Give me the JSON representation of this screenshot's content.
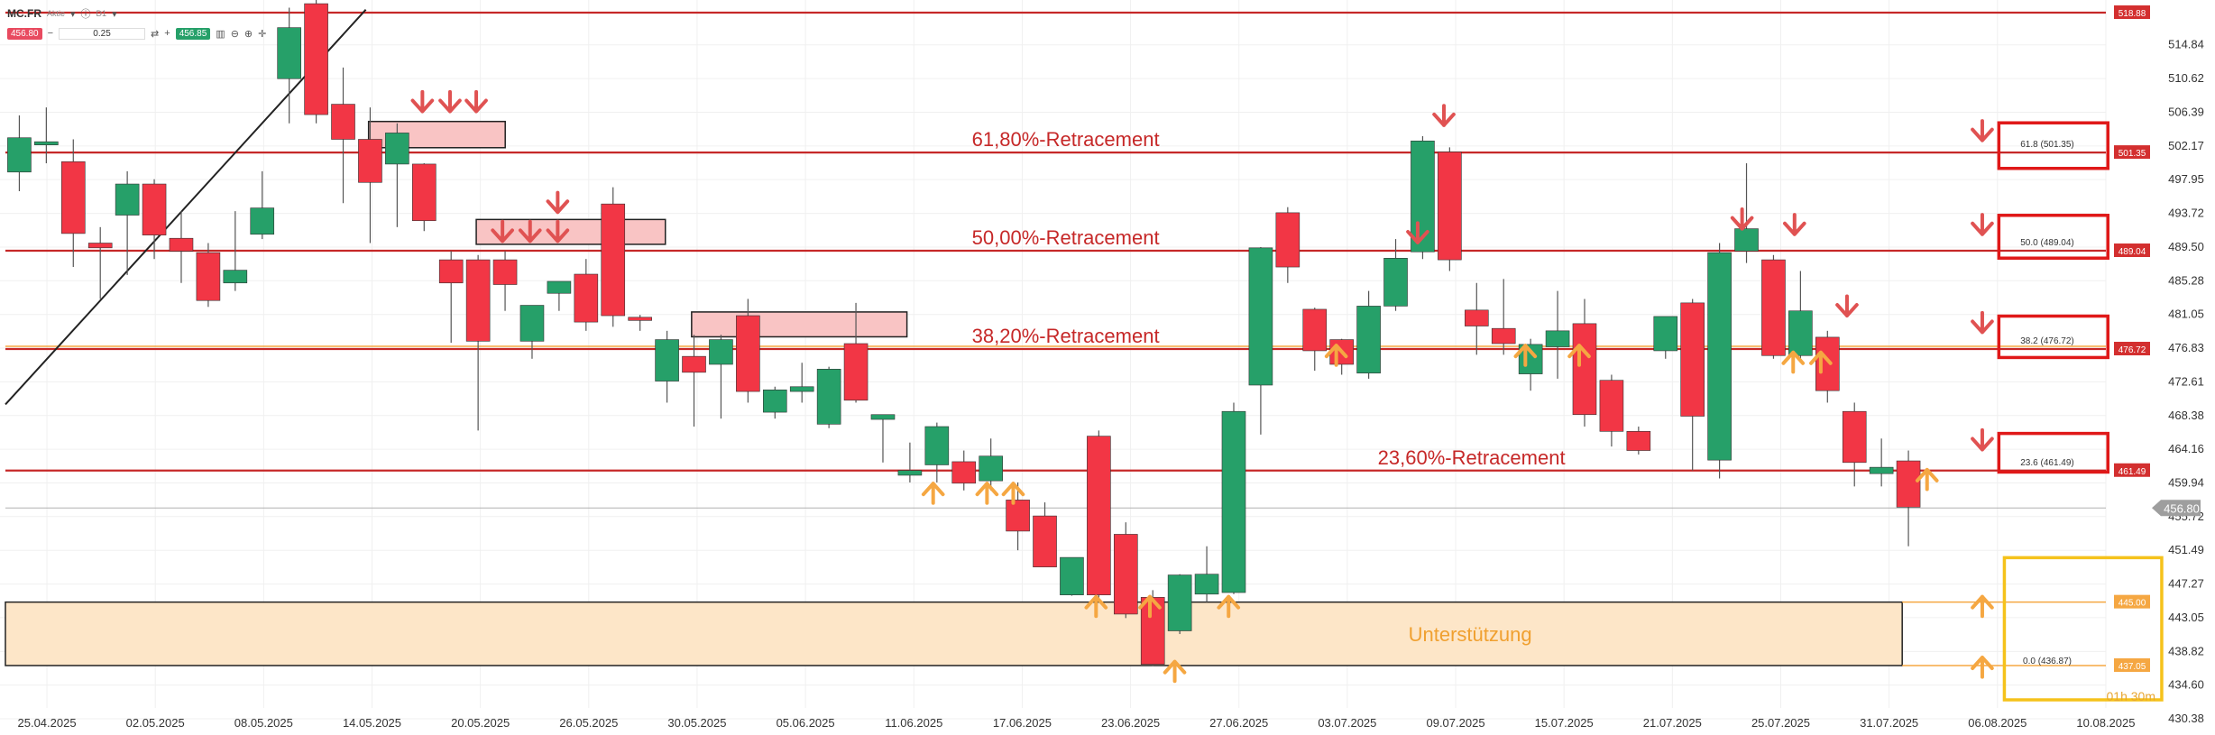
{
  "toolbar": {
    "symbol": "MC.FR",
    "instrument_type": "Aktie",
    "timeframe": "D1",
    "sell_price": "456.80",
    "quantity": "0.25",
    "buy_price": "456.85",
    "icons": [
      "minus-icon",
      "swap-icon",
      "plus-icon",
      "bar-chart-icon",
      "zoom-out-icon",
      "zoom-in-icon",
      "crosshair-icon"
    ]
  },
  "timer": "01h 30m",
  "colors": {
    "bull": "#26a069",
    "bear": "#f23645",
    "fib": "#c62828",
    "support": "#f5a742",
    "support_fill": "#fde6c8",
    "zone_fill": "#f9c4c4"
  },
  "chart_data": {
    "type": "candlestick",
    "ylim": [
      430.38,
      518.88
    ],
    "y_ticks": [
      "514.84",
      "510.62",
      "506.39",
      "502.17",
      "497.95",
      "493.72",
      "489.50",
      "485.28",
      "481.05",
      "476.83",
      "472.61",
      "468.38",
      "464.16",
      "459.94",
      "455.72",
      "451.49",
      "447.27",
      "443.05",
      "438.82",
      "434.60",
      "430.38"
    ],
    "x_ticks": [
      "25.04.2025",
      "02.05.2025",
      "08.05.2025",
      "14.05.2025",
      "20.05.2025",
      "26.05.2025",
      "30.05.2025",
      "05.06.2025",
      "11.06.2025",
      "17.06.2025",
      "23.06.2025",
      "27.06.2025",
      "03.07.2025",
      "09.07.2025",
      "15.07.2025",
      "21.07.2025",
      "25.07.2025",
      "31.07.2025",
      "06.08.2025",
      "10.08.2025"
    ],
    "candles": [
      {
        "o": 498.9,
        "h": 506.0,
        "l": 496.5,
        "c": 503.2
      },
      {
        "o": 502.3,
        "h": 507.0,
        "l": 500.0,
        "c": 502.7
      },
      {
        "o": 500.2,
        "h": 503.0,
        "l": 487.0,
        "c": 491.2
      },
      {
        "o": 490.0,
        "h": 492.0,
        "l": 483.0,
        "c": 489.4
      },
      {
        "o": 493.5,
        "h": 499.0,
        "l": 486.0,
        "c": 497.4
      },
      {
        "o": 497.4,
        "h": 498.0,
        "l": 488.0,
        "c": 491.0
      },
      {
        "o": 490.6,
        "h": 494.0,
        "l": 485.0,
        "c": 489.0
      },
      {
        "o": 488.8,
        "h": 490.0,
        "l": 482.0,
        "c": 482.8
      },
      {
        "o": 485.0,
        "h": 494.0,
        "l": 484.0,
        "c": 486.6
      },
      {
        "o": 491.1,
        "h": 499.0,
        "l": 490.5,
        "c": 494.4
      },
      {
        "o": 510.6,
        "h": 519.5,
        "l": 505.0,
        "c": 517.0
      },
      {
        "o": 520.0,
        "h": 521.0,
        "l": 505.0,
        "c": 506.1
      },
      {
        "o": 507.4,
        "h": 512.0,
        "l": 495.0,
        "c": 503.0
      },
      {
        "o": 503.0,
        "h": 507.0,
        "l": 490.0,
        "c": 497.6
      },
      {
        "o": 499.9,
        "h": 505.0,
        "l": 492.0,
        "c": 503.8
      },
      {
        "o": 499.9,
        "h": 500.0,
        "l": 491.5,
        "c": 492.8
      },
      {
        "o": 487.9,
        "h": 489.0,
        "l": 477.5,
        "c": 485.0
      },
      {
        "o": 487.9,
        "h": 488.5,
        "l": 466.5,
        "c": 477.7
      },
      {
        "o": 487.9,
        "h": 489.0,
        "l": 481.5,
        "c": 484.8
      },
      {
        "o": 477.7,
        "h": 482.0,
        "l": 475.5,
        "c": 482.2
      },
      {
        "o": 483.7,
        "h": 484.5,
        "l": 481.5,
        "c": 485.2
      },
      {
        "o": 486.1,
        "h": 488.0,
        "l": 479.0,
        "c": 480.1
      },
      {
        "o": 494.9,
        "h": 497.0,
        "l": 479.5,
        "c": 480.9
      },
      {
        "o": 480.7,
        "h": 481.0,
        "l": 479.0,
        "c": 480.3
      },
      {
        "o": 472.7,
        "h": 479.0,
        "l": 470.0,
        "c": 477.9
      },
      {
        "o": 475.8,
        "h": 478.5,
        "l": 467.0,
        "c": 473.8
      },
      {
        "o": 474.8,
        "h": 478.5,
        "l": 468.0,
        "c": 477.9
      },
      {
        "o": 480.9,
        "h": 483.0,
        "l": 470.0,
        "c": 471.4
      },
      {
        "o": 468.8,
        "h": 472.0,
        "l": 468.0,
        "c": 471.6
      },
      {
        "o": 471.4,
        "h": 475.0,
        "l": 470.0,
        "c": 472.0
      },
      {
        "o": 467.3,
        "h": 474.5,
        "l": 466.8,
        "c": 474.2
      },
      {
        "o": 477.4,
        "h": 482.5,
        "l": 470.0,
        "c": 470.3
      },
      {
        "o": 467.9,
        "h": 468.5,
        "l": 462.5,
        "c": 468.5
      },
      {
        "o": 460.9,
        "h": 465.0,
        "l": 460.0,
        "c": 461.5
      },
      {
        "o": 462.2,
        "h": 467.5,
        "l": 460.0,
        "c": 467.0
      },
      {
        "o": 462.6,
        "h": 464.0,
        "l": 459.0,
        "c": 459.9
      },
      {
        "o": 460.2,
        "h": 465.5,
        "l": 459.0,
        "c": 463.3
      },
      {
        "o": 457.8,
        "h": 460.0,
        "l": 451.5,
        "c": 453.9
      },
      {
        "o": 455.8,
        "h": 457.5,
        "l": 449.5,
        "c": 449.4
      },
      {
        "o": 445.9,
        "h": 450.5,
        "l": 445.8,
        "c": 450.6
      },
      {
        "o": 465.8,
        "h": 466.5,
        "l": 445.0,
        "c": 445.9
      },
      {
        "o": 453.5,
        "h": 455.0,
        "l": 443.0,
        "c": 443.5
      },
      {
        "o": 445.6,
        "h": 446.5,
        "l": 437.0,
        "c": 437.2
      },
      {
        "o": 441.4,
        "h": 448.5,
        "l": 441.0,
        "c": 448.4
      },
      {
        "o": 446.0,
        "h": 452.0,
        "l": 445.0,
        "c": 448.5
      },
      {
        "o": 446.2,
        "h": 470.0,
        "l": 446.0,
        "c": 468.9
      },
      {
        "o": 472.2,
        "h": 489.5,
        "l": 466.0,
        "c": 489.4
      },
      {
        "o": 493.8,
        "h": 494.5,
        "l": 485.0,
        "c": 487.0
      },
      {
        "o": 481.7,
        "h": 481.9,
        "l": 474.0,
        "c": 476.5
      },
      {
        "o": 477.9,
        "h": 478.0,
        "l": 473.5,
        "c": 474.8
      },
      {
        "o": 473.7,
        "h": 484.0,
        "l": 473.0,
        "c": 482.1
      },
      {
        "o": 482.1,
        "h": 490.5,
        "l": 481.5,
        "c": 488.1
      },
      {
        "o": 488.9,
        "h": 503.4,
        "l": 488.0,
        "c": 502.8
      },
      {
        "o": 501.4,
        "h": 502.0,
        "l": 486.5,
        "c": 487.9
      },
      {
        "o": 481.6,
        "h": 485.0,
        "l": 476.0,
        "c": 479.6
      },
      {
        "o": 479.3,
        "h": 485.5,
        "l": 476.0,
        "c": 477.4
      },
      {
        "o": 473.6,
        "h": 478.0,
        "l": 471.5,
        "c": 477.3
      },
      {
        "o": 477.0,
        "h": 484.0,
        "l": 473.0,
        "c": 479.0
      },
      {
        "o": 479.9,
        "h": 483.0,
        "l": 467.0,
        "c": 468.5
      },
      {
        "o": 472.8,
        "h": 473.5,
        "l": 464.5,
        "c": 466.4
      },
      {
        "o": 466.4,
        "h": 467.0,
        "l": 463.5,
        "c": 464.0
      },
      {
        "o": 476.5,
        "h": 480.5,
        "l": 475.5,
        "c": 480.8
      },
      {
        "o": 482.5,
        "h": 483.0,
        "l": 461.5,
        "c": 468.3
      },
      {
        "o": 462.8,
        "h": 490.0,
        "l": 460.5,
        "c": 488.8
      },
      {
        "o": 489.0,
        "h": 500.0,
        "l": 487.5,
        "c": 491.8
      },
      {
        "o": 487.9,
        "h": 488.5,
        "l": 475.5,
        "c": 475.9
      },
      {
        "o": 475.9,
        "h": 486.5,
        "l": 475.0,
        "c": 481.5
      },
      {
        "o": 478.2,
        "h": 479.0,
        "l": 470.0,
        "c": 471.5
      },
      {
        "o": 468.9,
        "h": 470.0,
        "l": 459.5,
        "c": 462.5
      },
      {
        "o": 461.1,
        "h": 465.5,
        "l": 459.5,
        "c": 461.9
      },
      {
        "o": 462.7,
        "h": 464.0,
        "l": 452.0,
        "c": 456.9
      }
    ],
    "fib_levels": [
      {
        "label": "61,80%-Retracement",
        "level": "61.8 (501.35)",
        "price": 501.35,
        "price_label": "501.35"
      },
      {
        "label": "50,00%-Retracement",
        "level": "50.0 (489.04)",
        "price": 489.04,
        "price_label": "489.04"
      },
      {
        "label": "38,20%-Retracement",
        "level": "38.2 (476.72)",
        "price": 476.72,
        "price_label": "476.72"
      },
      {
        "label": "23,60%-Retracement",
        "level": "23.6 (461.49)",
        "price": 461.49,
        "price_label": "461.49"
      }
    ],
    "top_level": {
      "price": 518.88,
      "price_label": "518.88"
    },
    "support_zone": {
      "label": "Unterstützung",
      "upper": 445.0,
      "lower": 437.05,
      "upper_label": "445.00",
      "lower_label": "437.05",
      "level_text": "0.0 (436.87)"
    },
    "current_price": {
      "price": 456.8,
      "price_label": "456.80"
    }
  }
}
